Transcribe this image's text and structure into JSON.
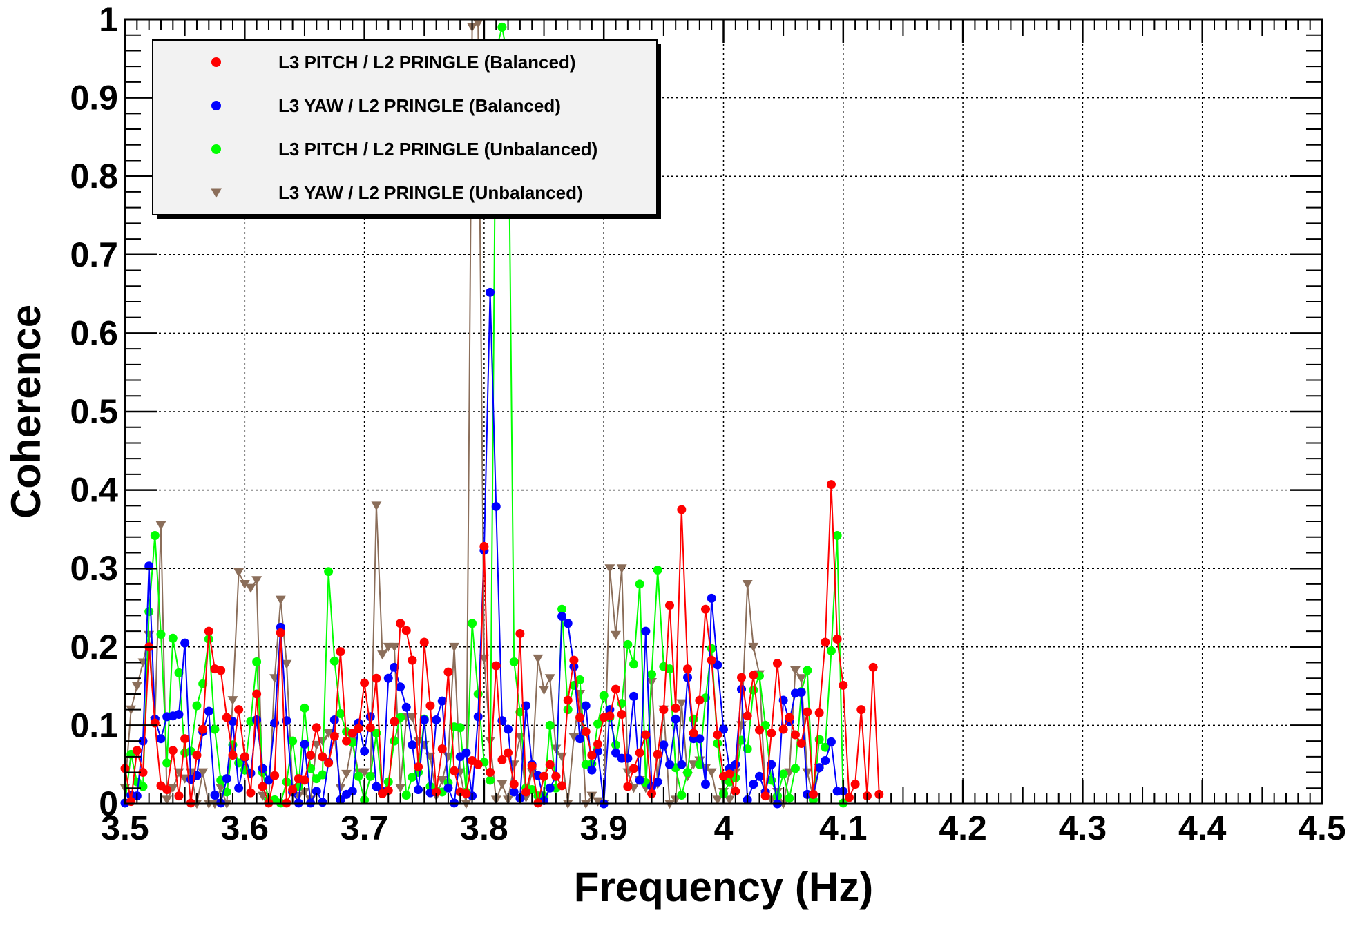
{
  "chart_data": {
    "type": "line",
    "title": "",
    "xlabel": "Frequency (Hz)",
    "ylabel": "Coherence",
    "xlim": [
      3.5,
      4.5
    ],
    "ylim": [
      0,
      1
    ],
    "grid": true,
    "x_ticks": [
      "3.5",
      "3.6",
      "3.7",
      "3.8",
      "3.9",
      "4",
      "4.1",
      "4.2",
      "4.3",
      "4.4",
      "4.5"
    ],
    "y_ticks": [
      "0",
      "0.1",
      "0.2",
      "0.3",
      "0.4",
      "0.5",
      "0.6",
      "0.7",
      "0.8",
      "0.9",
      "1"
    ],
    "legend_placement": "top-left",
    "x_start": 3.5,
    "x_step": 0.005,
    "series": [
      {
        "name": "L3 PITCH / L2 PRINGLE (Balanced)",
        "color": "#ff0000",
        "marker": "circle",
        "values": [
          0.045,
          0.003,
          0.068,
          0.04,
          0.2,
          0.103,
          0.023,
          0.018,
          0.068,
          0.01,
          0.083,
          0.001,
          0.062,
          0.095,
          0.22,
          0.172,
          0.17,
          0.11,
          0.062,
          0.12,
          0.06,
          0.014,
          0.14,
          0.022,
          0.001,
          0.036,
          0.218,
          0.001,
          0.018,
          0.032,
          0.03,
          0.062,
          0.097,
          0.06,
          0.052,
          0.086,
          0.194,
          0.08,
          0.09,
          0.096,
          0.154,
          0.097,
          0.16,
          0.013,
          0.017,
          0.105,
          0.23,
          0.221,
          0.183,
          0.047,
          0.206,
          0.125,
          0.015,
          0.07,
          0.168,
          0.042,
          0.015,
          0.013,
          0.055,
          0.05,
          0.328,
          0.04,
          0.176,
          0.056,
          0.065,
          0.025,
          0.217,
          0.015,
          0.048,
          0.001,
          0.035,
          0.05,
          0.035,
          0.023,
          0.132,
          0.183,
          0.11,
          0.092,
          0.062,
          0.076,
          0.11,
          0.112,
          0.146,
          0.114,
          0.022,
          0.045,
          0.065,
          0.088,
          0.013,
          0.063,
          0.12,
          0.253,
          0.122,
          0.375,
          0.172,
          0.09,
          0.132,
          0.248,
          0.183,
          0.088,
          0.035,
          0.038,
          0.016,
          0.161,
          0.112,
          0.164,
          0.094,
          0.01,
          0.09,
          0.179,
          0.095,
          0.11,
          0.088,
          0.077,
          0.117,
          0.012,
          0.116,
          0.206,
          0.407,
          0.21,
          0.151,
          0.008,
          0.025,
          0.12,
          0.01,
          0.174,
          0.012
        ]
      },
      {
        "name": "L3 YAW / L2 PRINGLE (Balanced)",
        "color": "#0000ff",
        "marker": "circle",
        "values": [
          0.001,
          0.011,
          0.01,
          0.08,
          0.303,
          0.108,
          0.083,
          0.111,
          0.112,
          0.114,
          0.205,
          0.031,
          0.036,
          0.092,
          0.118,
          0.011,
          0.001,
          0.032,
          0.105,
          0.02,
          0.059,
          0.039,
          0.107,
          0.045,
          0.03,
          0.103,
          0.225,
          0.106,
          0.015,
          0.001,
          0.076,
          0.001,
          0.016,
          0.002,
          0.053,
          0.107,
          0.005,
          0.012,
          0.016,
          0.103,
          0.067,
          0.111,
          0.022,
          0.016,
          0.16,
          0.174,
          0.149,
          0.123,
          0.075,
          0.018,
          0.107,
          0.014,
          0.107,
          0.131,
          0.02,
          0.001,
          0.06,
          0.065,
          0.01,
          0.111,
          0.323,
          0.652,
          0.379,
          0.106,
          0.095,
          0.015,
          0.007,
          0.125,
          0.05,
          0.036,
          0.004,
          0.02,
          0.035,
          0.239,
          0.23,
          0.175,
          0.083,
          0.125,
          0.043,
          0.067,
          0.0,
          0.12,
          0.065,
          0.058,
          0.058,
          0.137,
          0.03,
          0.22,
          0.022,
          0.028,
          0.075,
          0.05,
          0.108,
          0.05,
          0.161,
          0.083,
          0.083,
          0.025,
          0.262,
          0.177,
          0.095,
          0.045,
          0.05,
          0.146,
          0.005,
          0.025,
          0.035,
          0.015,
          0.05,
          0.0,
          0.132,
          0.105,
          0.141,
          0.142,
          0.012,
          0.012,
          0.046,
          0.055,
          0.079,
          0.016,
          0.016
        ]
      },
      {
        "name": "L3 PITCH / L2 PRINGLE (Unbalanced)",
        "color": "#00ff00",
        "marker": "circle",
        "values": [
          0.001,
          0.063,
          0.028,
          0.022,
          0.245,
          0.342,
          0.216,
          0.052,
          0.211,
          0.167,
          0.065,
          0.067,
          0.125,
          0.153,
          0.21,
          0.095,
          0.03,
          0.015,
          0.075,
          0.052,
          0.043,
          0.105,
          0.181,
          0.04,
          0.005,
          0.005,
          0.001,
          0.028,
          0.08,
          0.022,
          0.122,
          0.045,
          0.032,
          0.037,
          0.296,
          0.182,
          0.115,
          0.092,
          0.078,
          0.035,
          0.005,
          0.035,
          0.09,
          0.013,
          0.028,
          0.08,
          0.11,
          0.011,
          0.034,
          0.04,
          0.108,
          0.022,
          0.016,
          0.015,
          0.027,
          0.098,
          0.097,
          0.015,
          0.23,
          0.14,
          0.053,
          0.03,
          0.96,
          0.99,
          0.948,
          0.181,
          0.117,
          0.02,
          0.018,
          0.01,
          0.01,
          0.1,
          0.02,
          0.248,
          0.12,
          0.151,
          0.158,
          0.05,
          0.051,
          0.102,
          0.138,
          0.11,
          0.075,
          0.128,
          0.203,
          0.178,
          0.28,
          0.027,
          0.165,
          0.298,
          0.175,
          0.172,
          0.046,
          0.011,
          0.04,
          0.108,
          0.05,
          0.135,
          0.198,
          0.077,
          0.013,
          0.028,
          0.033,
          0.081,
          0.07,
          0.145,
          0.163,
          0.1,
          0.03,
          0.01,
          0.038,
          0.007,
          0.045,
          0.143,
          0.17,
          0.005,
          0.082,
          0.072,
          0.195,
          0.342,
          0.001
        ]
      },
      {
        "name": "L3 YAW / L2 PRINGLE (Unbalanced)",
        "color": "#8b6e5a",
        "marker": "triangle-down",
        "values": [
          0.02,
          0.12,
          0.15,
          0.18,
          0.215,
          0.105,
          0.355,
          0.005,
          0.02,
          0.04,
          0.032,
          0.04,
          0.0,
          0.04,
          0.0,
          0.0,
          0.02,
          0.0,
          0.132,
          0.295,
          0.28,
          0.275,
          0.285,
          0.01,
          0.001,
          0.16,
          0.26,
          0.178,
          0.02,
          0.01,
          0.015,
          0.005,
          0.075,
          0.08,
          0.09,
          0.085,
          0.02,
          0.038,
          0.08,
          0.04,
          0.04,
          0.035,
          0.38,
          0.19,
          0.2,
          0.2,
          0.02,
          0.11,
          0.11,
          0.08,
          0.075,
          0.06,
          0.01,
          0.03,
          0.06,
          0.2,
          0.04,
          0.0,
          0.99,
          0.995,
          0.185,
          0.08,
          0.005,
          0.025,
          0.005,
          0.05,
          0.085,
          0.008,
          0.04,
          0.185,
          0.145,
          0.16,
          0.07,
          0.06,
          0.0,
          0.085,
          0.14,
          0.0,
          0.01,
          0.003,
          0.0,
          0.3,
          0.215,
          0.3,
          0.04,
          0.02,
          0.03,
          0.02,
          0.155,
          0.025,
          0.12,
          0.0,
          0.005,
          0.128,
          0.035,
          0.05,
          0.055,
          0.045,
          0.04,
          0.005,
          0.015,
          0.005,
          0.04,
          0.1,
          0.28,
          0.2,
          0.165,
          0.012,
          0.005,
          0.015,
          0.0,
          0.04,
          0.17,
          0.16,
          0.04,
          0.008,
          0.045
        ]
      }
    ]
  }
}
